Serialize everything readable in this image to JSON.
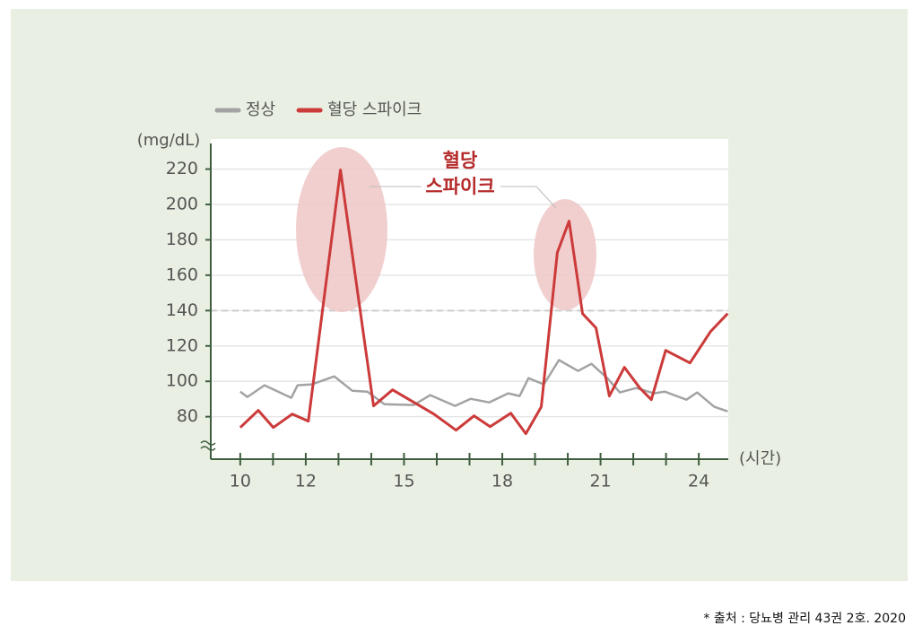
{
  "chart_data": {
    "type": "line",
    "y_axis_label": "(mg/dL)",
    "x_axis_label": "(시간)",
    "xlim": [
      9.1,
      24.9
    ],
    "xticks": [
      10,
      12,
      15,
      18,
      21,
      24
    ],
    "x_minor_ticks": [
      11,
      13,
      14,
      16,
      17,
      19,
      20,
      22,
      23
    ],
    "ylim": [
      56,
      237
    ],
    "yticks": [
      80,
      100,
      120,
      140,
      160,
      180,
      200,
      220
    ],
    "grid": true,
    "reference_line": 140,
    "legend": "top",
    "annotation": [
      "혈당",
      "스파이크"
    ],
    "series": [
      {
        "name": "정상",
        "color": "#a3a3a3",
        "x": [
          10,
          10.22,
          10.74,
          11.56,
          11.75,
          12.19,
          12.87,
          13.42,
          13.88,
          14.4,
          15.3,
          15.8,
          16.56,
          17.03,
          17.6,
          18.18,
          18.53,
          18.8,
          19.27,
          19.73,
          20.31,
          20.72,
          21.21,
          21.59,
          22.09,
          22.63,
          22.96,
          23.62,
          23.95,
          24.47,
          24.88
        ],
        "values": [
          94.2,
          91.2,
          97.8,
          90.7,
          97.8,
          98.3,
          102.8,
          94.7,
          94.2,
          87.1,
          86.6,
          92.2,
          86.1,
          90.1,
          88.1,
          93.2,
          91.7,
          101.8,
          98.3,
          112,
          105.9,
          109.9,
          101.8,
          93.7,
          96.2,
          93.2,
          94.2,
          89.6,
          93.7,
          85.6,
          83
        ]
      },
      {
        "name": "혈당 스파이크",
        "color": "#cc3a3a",
        "x": [
          10,
          10.55,
          11.01,
          11.59,
          12.08,
          13.06,
          14.07,
          14.65,
          15.91,
          16.59,
          17.14,
          17.63,
          18.26,
          18.72,
          19.19,
          19.68,
          20.04,
          20.45,
          20.86,
          21.27,
          21.73,
          22.2,
          22.55,
          22.99,
          23.73,
          24.36,
          24.88
        ],
        "values": [
          73.9,
          83.6,
          73.9,
          81.5,
          77.5,
          219.5,
          86.1,
          95.2,
          81.5,
          72.4,
          80.5,
          74.4,
          82,
          70.4,
          85.6,
          172.8,
          190.6,
          138.3,
          130.2,
          91.7,
          107.9,
          96.2,
          89.6,
          117.5,
          110.4,
          128.2,
          138.3
        ]
      }
    ]
  },
  "source": "* 출처 : 당뇨병 관리 43권 2호. 2020"
}
